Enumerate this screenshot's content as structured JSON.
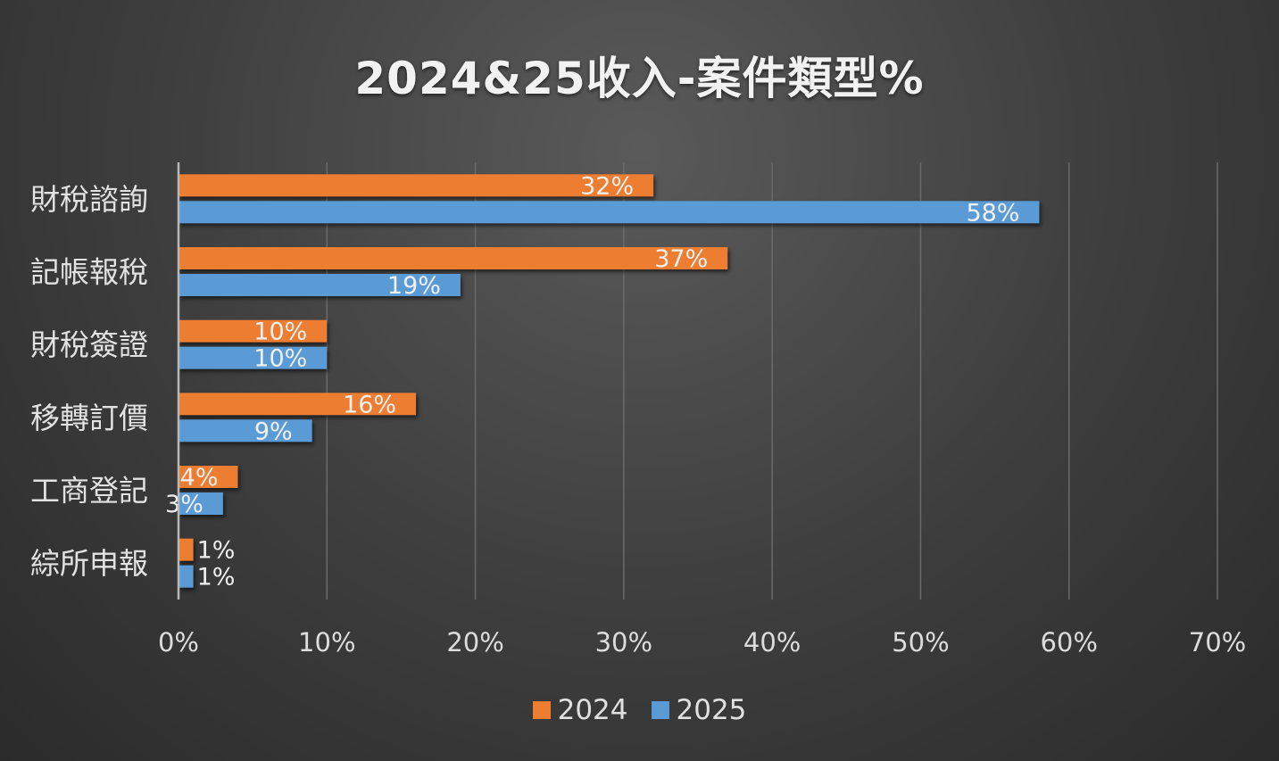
{
  "chart_data": {
    "type": "bar",
    "orientation": "horizontal",
    "title": "2024&25收入-案件類型%",
    "categories": [
      "財稅諮詢",
      "記帳報稅",
      "財稅簽證",
      "移轉訂價",
      "工商登記",
      "綜所申報"
    ],
    "series": [
      {
        "name": "2024",
        "color": "#ED7D31",
        "values": [
          32,
          37,
          10,
          16,
          4,
          1
        ],
        "labels": [
          "32%",
          "37%",
          "10%",
          "16%",
          "4%",
          "1%"
        ]
      },
      {
        "name": "2025",
        "color": "#5B9BD5",
        "values": [
          58,
          19,
          10,
          9,
          3,
          1
        ],
        "labels": [
          "58%",
          "19%",
          "10%",
          "9%",
          "3%",
          "1%"
        ]
      }
    ],
    "xlim": [
      0,
      70
    ],
    "xticks": [
      0,
      10,
      20,
      30,
      40,
      50,
      60,
      70
    ],
    "xtick_labels": [
      "0%",
      "10%",
      "20%",
      "30%",
      "40%",
      "50%",
      "60%",
      "70%"
    ],
    "grid": "vertical",
    "legend_position": "bottom"
  }
}
